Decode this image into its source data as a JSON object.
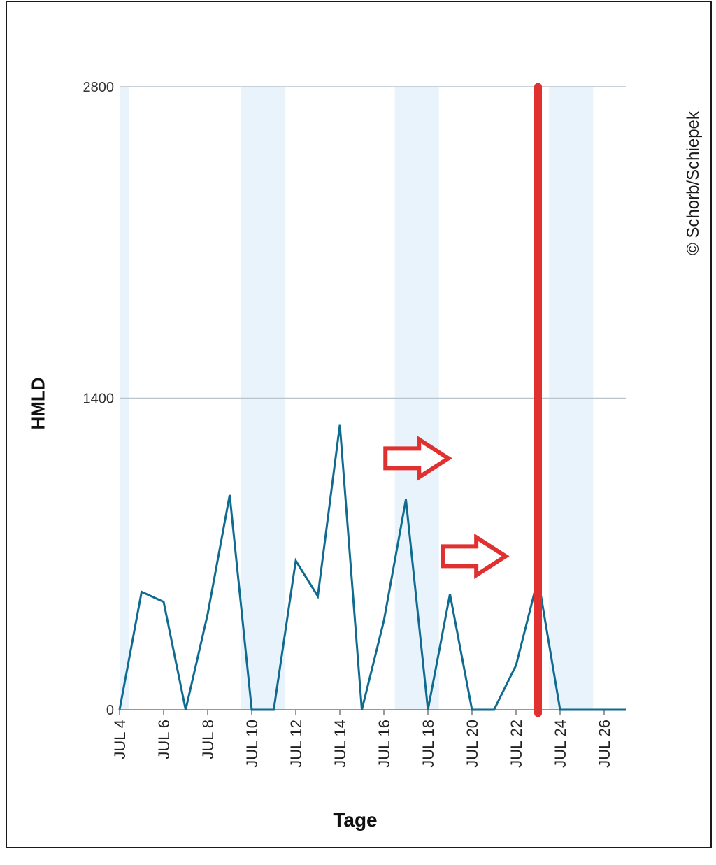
{
  "chart_data": {
    "type": "line",
    "title": "",
    "xlabel": "Tage",
    "ylabel": "HMLD",
    "x": [
      "JUL 4",
      "JUL 5",
      "JUL 6",
      "JUL 7",
      "JUL 8",
      "JUL 9",
      "JUL 10",
      "JUL 11",
      "JUL 12",
      "JUL 13",
      "JUL 14",
      "JUL 15",
      "JUL 16",
      "JUL 17",
      "JUL 18",
      "JUL 19",
      "JUL 20",
      "JUL 21",
      "JUL 22",
      "JUL 23",
      "JUL 24",
      "JUL 25",
      "JUL 26",
      "JUL 27"
    ],
    "x_tick_labels": [
      "JUL 4",
      "JUL 6",
      "JUL 8",
      "JUL 10",
      "JUL 12",
      "JUL 14",
      "JUL 16",
      "JUL 18",
      "JUL 20",
      "JUL 22",
      "JUL 24",
      "JUL 26"
    ],
    "series": [
      {
        "color": "#0f6b8f",
        "values": [
          0,
          530,
          485,
          0,
          430,
          965,
          0,
          0,
          670,
          510,
          1280,
          0,
          400,
          945,
          0,
          520,
          0,
          0,
          200,
          590,
          0,
          0,
          0,
          0
        ]
      }
    ],
    "ylim": [
      0,
      2800
    ],
    "y_ticks": [
      0,
      1400,
      2800
    ],
    "y_tick_labels": [
      "0",
      "1400",
      "2800"
    ],
    "shaded_bands": [
      {
        "from": "JUL 4",
        "to": "JUL 4"
      },
      {
        "from": "JUL 10",
        "to": "JUL 11"
      },
      {
        "from": "JUL 17",
        "to": "JUL 18"
      },
      {
        "from": "JUL 24",
        "to": "JUL 25"
      }
    ],
    "marker_line": {
      "x": "JUL 23",
      "color": "#e0302f"
    },
    "arrows": [
      {
        "x": "JUL 17.5",
        "y": 1130,
        "color": "#e0302f"
      },
      {
        "x": "JUL 20.1",
        "y": 690,
        "color": "#e0302f"
      }
    ],
    "grid": true,
    "band_color": "#e8f3fb",
    "grid_color": "#b9c4cc"
  },
  "credit": "© Schorb/Schiepek"
}
